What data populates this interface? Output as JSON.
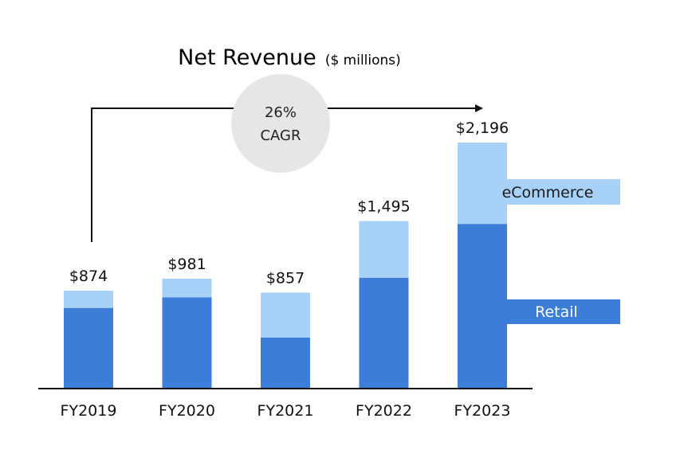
{
  "chart_data": {
    "type": "bar",
    "stacked": true,
    "title": "Net Revenue",
    "subtitle": "($ millions)",
    "categories": [
      "FY2019",
      "FY2020",
      "FY2021",
      "FY2022",
      "FY2023"
    ],
    "series": [
      {
        "name": "Retail",
        "values": [
          720,
          815,
          455,
          990,
          1470
        ]
      },
      {
        "name": "eCommerce",
        "values": [
          154,
          166,
          402,
          505,
          726
        ]
      }
    ],
    "totals": [
      "$874",
      "$981",
      "$857",
      "$1,495",
      "$2,196"
    ],
    "ylim": [
      0,
      2196
    ],
    "grid": false,
    "legend_placement": "right",
    "annotation": {
      "line1": "26%",
      "line2": "CAGR"
    },
    "colors": {
      "Retail": "#3b7dd8",
      "eCommerce": "#a7d1f7",
      "cagr_circle": "#e6e6e6",
      "retail_legend_text": "#ffffff",
      "ecommerce_legend_text": "#1a1a1a"
    }
  }
}
